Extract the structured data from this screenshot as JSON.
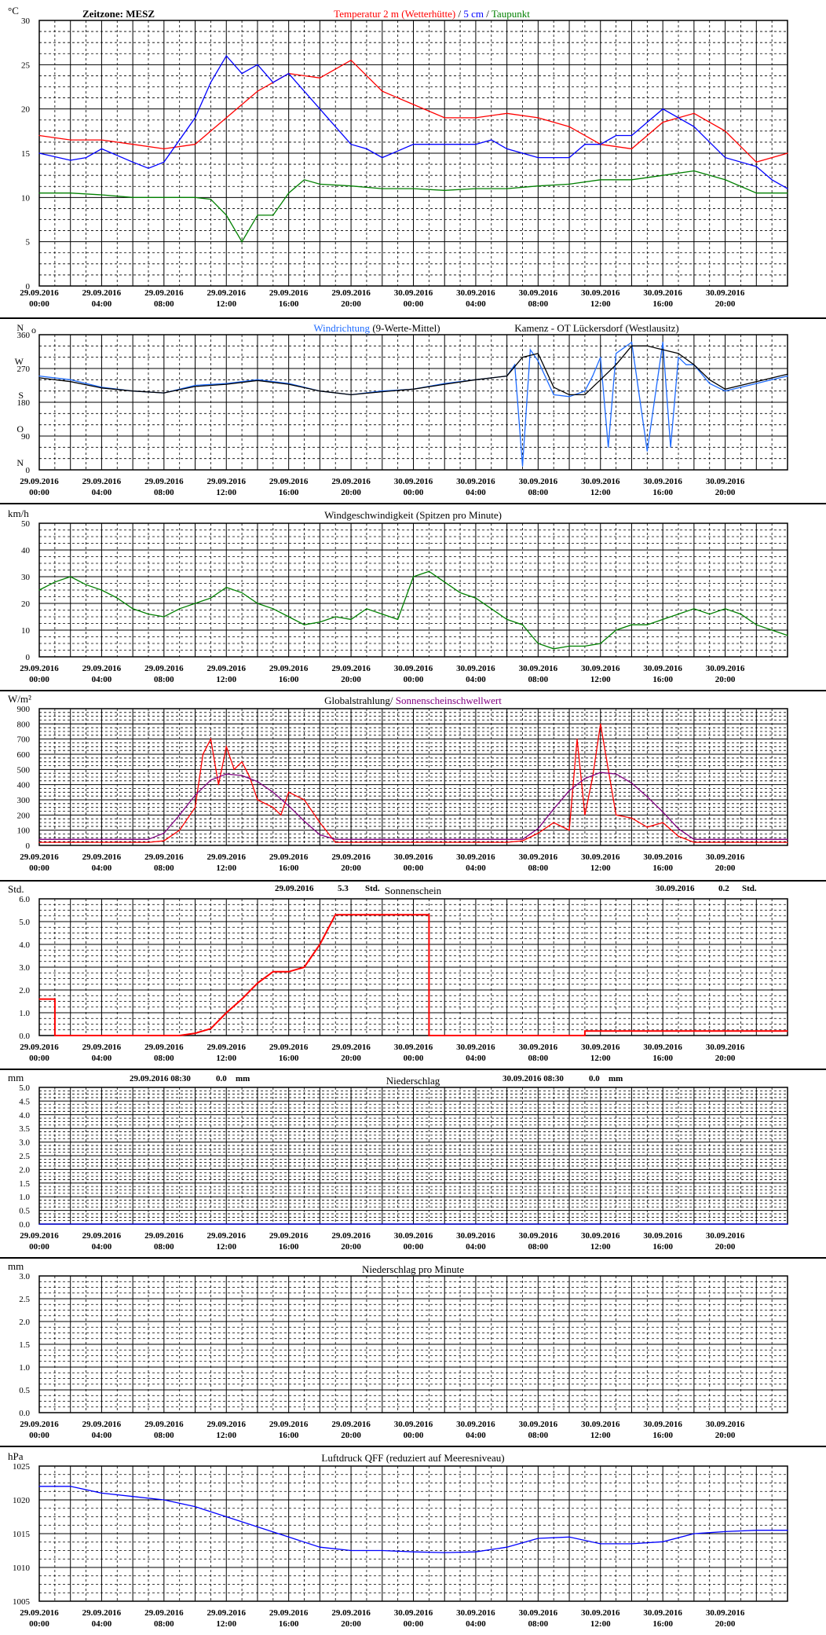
{
  "x_axis": {
    "labels": [
      {
        "date": "29.09.2016",
        "time": "00:00"
      },
      {
        "date": "29.09.2016",
        "time": "04:00"
      },
      {
        "date": "29.09.2016",
        "time": "08:00"
      },
      {
        "date": "29.09.2016",
        "time": "12:00"
      },
      {
        "date": "29.09.2016",
        "time": "16:00"
      },
      {
        "date": "29.09.2016",
        "time": "20:00"
      },
      {
        "date": "30.09.2016",
        "time": "00:00"
      },
      {
        "date": "30.09.2016",
        "time": "04:00"
      },
      {
        "date": "30.09.2016",
        "time": "08:00"
      },
      {
        "date": "30.09.2016",
        "time": "12:00"
      },
      {
        "date": "30.09.2016",
        "time": "16:00"
      },
      {
        "date": "30.09.2016",
        "time": "20:00"
      }
    ]
  },
  "colors": {
    "axis": "#000000",
    "grid": "#000000",
    "red": "#ff0000",
    "blue": "#0000ff",
    "green": "#008000",
    "black": "#000000",
    "purple": "#800080",
    "wind_blue": "#1e6bff",
    "navy": "#00008b"
  },
  "chart_data": [
    {
      "id": "temperature",
      "type": "line",
      "unit": "°C",
      "ylim": [
        0,
        30
      ],
      "yticks": [
        0,
        5,
        10,
        15,
        20,
        25,
        30
      ],
      "header_left": "Zeitzone: MESZ",
      "title_parts": [
        {
          "text": "Temperatur 2 m (Wetterhütte)",
          "color": "#ff0000"
        },
        {
          "text": " / ",
          "color": "#000000"
        },
        {
          "text": "5 cm",
          "color": "#0000ff"
        },
        {
          "text": " / ",
          "color": "#000000"
        },
        {
          "text": "Taupunkt",
          "color": "#008000"
        }
      ],
      "series": [
        {
          "color": "#ff0000",
          "x": [
            0,
            2,
            4,
            6,
            8,
            10,
            12,
            14,
            16,
            18,
            20,
            22,
            24,
            26,
            28,
            30,
            32,
            34,
            36,
            38,
            40,
            42,
            44,
            46,
            48
          ],
          "values": [
            17,
            16.5,
            16.5,
            16,
            15.5,
            16,
            19,
            22,
            24,
            23.5,
            25.5,
            22,
            20.5,
            19,
            19,
            19.5,
            19,
            18,
            16,
            15.5,
            18.5,
            19.5,
            17.5,
            14,
            15
          ]
        },
        {
          "color": "#0000ff",
          "x": [
            0,
            2,
            3,
            4,
            6,
            7,
            8,
            10,
            11,
            12,
            13,
            14,
            15,
            16,
            17,
            18,
            19,
            20,
            21,
            22,
            24,
            26,
            28,
            29,
            30,
            31,
            32,
            33,
            34,
            35,
            36,
            37,
            38,
            39,
            40,
            42,
            44,
            46,
            47,
            48
          ],
          "values": [
            15,
            14.2,
            14.5,
            15.5,
            14,
            13.3,
            14,
            19,
            23,
            26,
            24,
            25,
            23,
            24,
            22,
            20,
            18,
            16,
            15.5,
            14.5,
            16,
            16,
            16,
            16.5,
            15.5,
            15,
            14.5,
            14.5,
            14.5,
            16,
            16,
            17,
            17,
            18.5,
            20,
            18,
            14.5,
            13.5,
            12,
            11
          ]
        },
        {
          "color": "#008000",
          "x": [
            0,
            2,
            4,
            6,
            8,
            10,
            11,
            12,
            13,
            14,
            15,
            16,
            17,
            18,
            20,
            22,
            24,
            26,
            28,
            30,
            32,
            34,
            36,
            38,
            40,
            42,
            44,
            46,
            48
          ],
          "values": [
            10.5,
            10.5,
            10.3,
            10,
            10,
            10,
            9.8,
            8,
            5,
            8,
            8,
            10.5,
            12,
            11.5,
            11.3,
            11,
            11,
            10.8,
            11,
            11,
            11.3,
            11.5,
            12,
            12,
            12.5,
            13,
            12,
            10.5,
            10.5
          ]
        }
      ]
    },
    {
      "id": "wind_direction",
      "type": "line",
      "ylim": [
        0,
        360
      ],
      "ylabels": [
        {
          "value": 360,
          "text": "360"
        },
        {
          "value": 270,
          "text": "270"
        },
        {
          "value": 180,
          "text": "180"
        },
        {
          "value": 90,
          "text": "90"
        },
        {
          "value": 0,
          "text": "0"
        }
      ],
      "compass_labels": [
        {
          "value": 360,
          "text": "N"
        },
        {
          "value": 270,
          "text": "W"
        },
        {
          "value": 180,
          "text": "S"
        },
        {
          "value": 90,
          "text": "O"
        },
        {
          "value": 0,
          "text": "N"
        }
      ],
      "unit_mark": "o",
      "title_parts": [
        {
          "text": "Windrichtung",
          "color": "#1e6bff"
        },
        {
          "text": " (9-Werte-Mittel)",
          "color": "#000000"
        }
      ],
      "station": "Kamenz - OT Lückersdorf (Westlausitz)",
      "series": [
        {
          "color": "#1e6bff",
          "x": [
            0,
            2,
            4,
            6,
            8,
            10,
            12,
            14,
            16,
            18,
            20,
            22,
            24,
            26,
            28,
            30,
            30.5,
            31,
            31.5,
            32,
            33,
            34,
            35,
            35.5,
            36,
            36.5,
            37,
            38,
            39,
            40,
            40.5,
            41,
            41.5,
            42,
            43,
            44,
            46,
            47,
            48
          ],
          "values": [
            250,
            240,
            220,
            210,
            205,
            225,
            230,
            240,
            230,
            210,
            200,
            210,
            215,
            230,
            240,
            250,
            280,
            10,
            320,
            290,
            200,
            195,
            210,
            250,
            300,
            60,
            310,
            340,
            50,
            340,
            60,
            300,
            280,
            280,
            230,
            210,
            230,
            240,
            250
          ]
        },
        {
          "color": "#000000",
          "x": [
            0,
            2,
            4,
            6,
            8,
            10,
            12,
            14,
            16,
            18,
            20,
            22,
            24,
            26,
            28,
            30,
            31,
            32,
            33,
            34,
            35,
            36,
            37,
            38,
            39,
            40,
            41,
            42,
            43,
            44,
            46,
            48
          ],
          "values": [
            245,
            235,
            218,
            210,
            205,
            222,
            228,
            238,
            228,
            210,
            200,
            208,
            215,
            228,
            240,
            250,
            300,
            310,
            220,
            200,
            200,
            240,
            280,
            330,
            330,
            320,
            310,
            280,
            240,
            215,
            235,
            255
          ]
        }
      ]
    },
    {
      "id": "wind_speed",
      "type": "line",
      "unit": "km/h",
      "ylim": [
        0,
        50
      ],
      "yticks": [
        0,
        10,
        20,
        30,
        40,
        50
      ],
      "title": "Windgeschwindigkeit (Spitzen pro Minute)",
      "series": [
        {
          "color": "#008000",
          "x": [
            0,
            1,
            2,
            3,
            4,
            5,
            6,
            7,
            8,
            9,
            10,
            11,
            12,
            13,
            14,
            15,
            16,
            17,
            18,
            19,
            20,
            21,
            22,
            23,
            24,
            25,
            26,
            27,
            28,
            29,
            30,
            31,
            32,
            33,
            34,
            35,
            36,
            37,
            38,
            39,
            40,
            41,
            42,
            43,
            44,
            45,
            46,
            47,
            48
          ],
          "values": [
            25,
            28,
            30,
            27,
            25,
            22,
            18,
            16,
            15,
            18,
            20,
            22,
            26,
            24,
            20,
            18,
            15,
            12,
            13,
            15,
            14,
            18,
            16,
            14,
            30,
            32,
            28,
            24,
            22,
            18,
            14,
            12,
            5,
            3,
            4,
            4,
            5,
            10,
            12,
            12,
            14,
            16,
            18,
            16,
            18,
            16,
            12,
            10,
            8
          ]
        }
      ]
    },
    {
      "id": "radiation",
      "type": "line",
      "unit": "W/m²",
      "ylim": [
        0,
        900
      ],
      "yticks": [
        0,
        100,
        200,
        300,
        400,
        500,
        600,
        700,
        800,
        900
      ],
      "title_parts": [
        {
          "text": "Globalstrahlung",
          "color": "#000000"
        },
        {
          "text": "/ ",
          "color": "#000000"
        },
        {
          "text": "Sonnenscheinschwellwert",
          "color": "#800080"
        }
      ],
      "series": [
        {
          "color": "#ff0000",
          "x": [
            0,
            7,
            8,
            9,
            10,
            10.5,
            11,
            11.5,
            12,
            12.5,
            13,
            13.5,
            14,
            15,
            15.5,
            16,
            17,
            18,
            19,
            30,
            31,
            32,
            33,
            34,
            34.5,
            35,
            35.5,
            36,
            37,
            38,
            39,
            40,
            41,
            42,
            48
          ],
          "values": [
            20,
            20,
            30,
            100,
            250,
            600,
            700,
            400,
            650,
            500,
            550,
            450,
            300,
            250,
            200,
            350,
            300,
            150,
            20,
            20,
            30,
            80,
            150,
            100,
            700,
            200,
            450,
            800,
            200,
            180,
            120,
            150,
            60,
            20,
            20
          ]
        },
        {
          "color": "#800080",
          "x": [
            7,
            8,
            9,
            10,
            11,
            12,
            13,
            14,
            15,
            16,
            17,
            18,
            19
          ],
          "values": [
            40,
            80,
            200,
            330,
            430,
            470,
            460,
            420,
            350,
            260,
            160,
            70,
            40
          ]
        },
        {
          "color": "#800080",
          "x": [
            31,
            32,
            33,
            34,
            35,
            36,
            37,
            38,
            39,
            40,
            41,
            42
          ],
          "values": [
            40,
            110,
            240,
            360,
            440,
            480,
            470,
            410,
            320,
            220,
            110,
            40
          ]
        },
        {
          "color": "#800080",
          "x": [
            0,
            7
          ],
          "values": [
            40,
            40
          ]
        },
        {
          "color": "#800080",
          "x": [
            19,
            31
          ],
          "values": [
            40,
            40
          ]
        },
        {
          "color": "#800080",
          "x": [
            42,
            48
          ],
          "values": [
            40,
            40
          ]
        }
      ]
    },
    {
      "id": "sunshine",
      "type": "line",
      "unit": "Std.",
      "ylim": [
        0,
        6
      ],
      "yticks": [
        0,
        1,
        2,
        3,
        4,
        5,
        6
      ],
      "ytick_labels": [
        "0.0",
        "1.0",
        "2.0",
        "3.0",
        "4.0",
        "5.0",
        "6.0"
      ],
      "title": "Sonnenschein",
      "summaries": [
        {
          "date": "29.09.2016",
          "value": "5.3",
          "unit": "Std."
        },
        {
          "date": "30.09.2016",
          "value": "0.2",
          "unit": "Std."
        }
      ],
      "series": [
        {
          "color": "#ff0000",
          "x": [
            0,
            1,
            1,
            9,
            10,
            11,
            12,
            13,
            14,
            15,
            16,
            17,
            18,
            19,
            24,
            25,
            25,
            35,
            35,
            48
          ],
          "values": [
            1.6,
            1.6,
            0,
            0,
            0.1,
            0.3,
            1.0,
            1.6,
            2.3,
            2.8,
            2.8,
            3.0,
            4.0,
            5.3,
            5.3,
            5.3,
            0,
            0,
            0.2,
            0.2
          ]
        }
      ]
    },
    {
      "id": "precipitation",
      "type": "line",
      "unit": "mm",
      "ylim": [
        0,
        5
      ],
      "yticks": [
        0,
        0.5,
        1,
        1.5,
        2,
        2.5,
        3,
        3.5,
        4,
        4.5,
        5
      ],
      "ytick_labels": [
        "0.0",
        "0.5",
        "1.0",
        "1.5",
        "2.0",
        "2.5",
        "3.0",
        "3.5",
        "4.0",
        "4.5",
        "5.0"
      ],
      "title": "Niederschlag",
      "summaries": [
        {
          "date": "29.09.2016 08:30",
          "value": "0.0",
          "unit": "mm"
        },
        {
          "date": "30.09.2016 08:30",
          "value": "0.0",
          "unit": "mm"
        }
      ],
      "series": [
        {
          "color": "#0000ff",
          "x": [
            0,
            48
          ],
          "values": [
            0,
            0
          ]
        }
      ]
    },
    {
      "id": "precipitation_per_minute",
      "type": "line",
      "unit": "mm",
      "ylim": [
        0,
        3
      ],
      "yticks": [
        0,
        0.5,
        1,
        1.5,
        2,
        2.5,
        3
      ],
      "ytick_labels": [
        "0.0",
        "0.5",
        "1.0",
        "1.5",
        "2.0",
        "2.5",
        "3.0"
      ],
      "title": "Niederschlag pro Minute",
      "series": []
    },
    {
      "id": "pressure",
      "type": "line",
      "unit": "hPa",
      "ylim": [
        1005,
        1025
      ],
      "yticks": [
        1005,
        1010,
        1015,
        1020,
        1025
      ],
      "title": "Luftdruck QFF (reduziert auf Meeresniveau)",
      "series": [
        {
          "color": "#0000ff",
          "x": [
            0,
            2,
            4,
            6,
            8,
            10,
            12,
            14,
            16,
            18,
            20,
            22,
            24,
            26,
            28,
            30,
            32,
            34,
            36,
            38,
            40,
            42,
            44,
            46,
            48
          ],
          "values": [
            1022,
            1022,
            1021,
            1020.5,
            1020,
            1019,
            1017.5,
            1016,
            1014.5,
            1013,
            1012.5,
            1012.5,
            1012.3,
            1012.2,
            1012.3,
            1013,
            1014.3,
            1014.5,
            1013.5,
            1013.5,
            1013.8,
            1015,
            1015.3,
            1015.5,
            1015.5
          ]
        }
      ]
    }
  ]
}
